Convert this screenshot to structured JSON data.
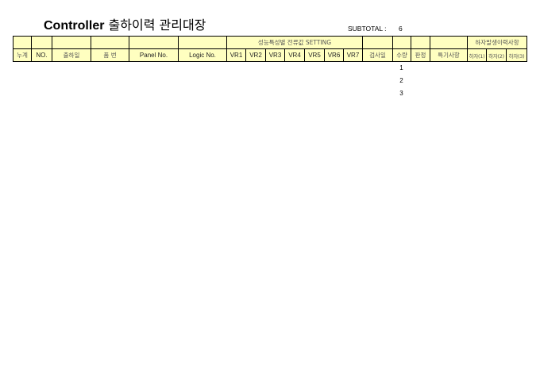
{
  "title": {
    "bold": "Controller",
    "rest": " 출하이력 관리대장"
  },
  "subtotal": {
    "label": "SUBTOTAL :",
    "value": "6"
  },
  "header": {
    "group_setting": "성능특성별 전류값 SETTING",
    "group_defect": "하자발생이력사항",
    "columns": [
      "누계",
      "NO.",
      "출하일",
      "품 번",
      "Panel No.",
      "Logic No.",
      "VR1",
      "VR2",
      "VR3",
      "VR4",
      "VR5",
      "VR6",
      "VR7",
      "검사일",
      "수량",
      "판정",
      "특기사항",
      "하자(1)",
      "하자(2)",
      "하자(3)"
    ],
    "header_bg": "#ffffc0"
  },
  "rows": [
    {
      "qty": "1"
    },
    {
      "qty": "2"
    },
    {
      "qty": "3"
    }
  ]
}
